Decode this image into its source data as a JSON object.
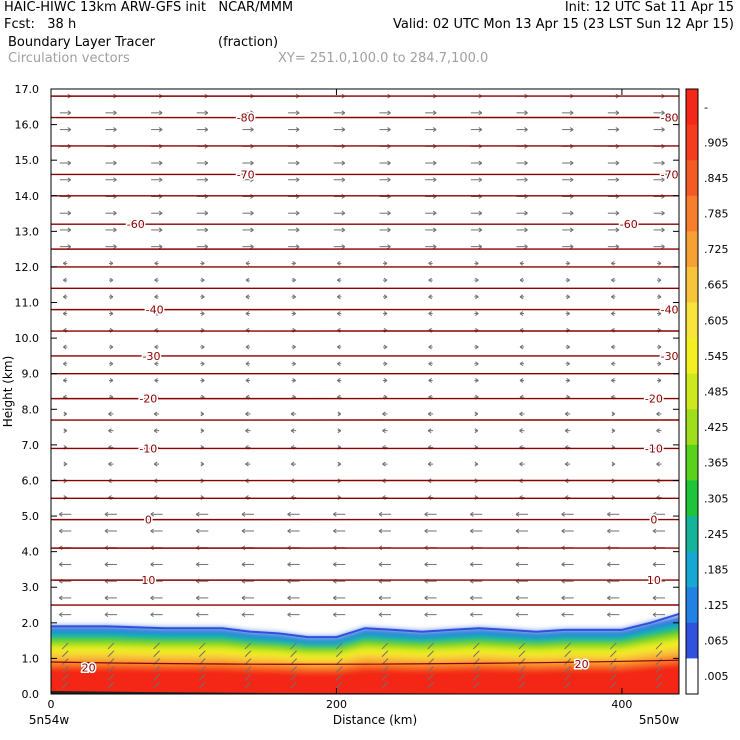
{
  "header": {
    "line1_left": "HAIC-HIWC 13km ARW-GFS init   NCAR/MMM",
    "line1_right": "Init: 12 UTC Sat 11 Apr 15",
    "line2_left": "Fcst:   38 h",
    "line2_right": "Valid: 02 UTC Mon 13 Apr 15 (23 LST Sun 12 Apr 15)",
    "field_name": "Boundary Layer Tracer",
    "field_units": "(fraction)",
    "vector_label": "Circulation vectors",
    "xsec_label": "XY= 251.0,100.0 to 284.7,100.0"
  },
  "colors": {
    "contour": "#8b0000",
    "vector": "#707070",
    "text_gray": "#a0a0a0"
  },
  "chart_data": {
    "type": "heatmap",
    "title": "Boundary Layer Tracer",
    "units": "fraction",
    "xlabel": "Distance (km)",
    "ylabel": "Height (km)",
    "xlim": [
      0,
      440
    ],
    "ylim": [
      0,
      17
    ],
    "x_ticks": [
      0,
      200,
      400
    ],
    "x_tick_labels": [
      "0",
      "200",
      "400"
    ],
    "y_ticks": [
      0,
      1,
      2,
      3,
      4,
      5,
      6,
      7,
      8,
      9,
      10,
      11,
      12,
      13,
      14,
      15,
      16,
      17
    ],
    "y_tick_labels": [
      "0.0",
      "1.0",
      "2.0",
      "3.0",
      "4.0",
      "5.0",
      "6.0",
      "7.0",
      "8.0",
      "9.0",
      "10.0",
      "11.0",
      "12.0",
      "13.0",
      "14.0",
      "15.0",
      "16.0",
      "17.0"
    ],
    "x_end_labels": [
      "5n54w",
      "5n50w"
    ],
    "colorbar": {
      "tick_labels": [
        "-",
        ".905",
        ".845",
        ".785",
        ".725",
        ".665",
        ".605",
        ".545",
        ".485",
        ".425",
        ".365",
        ".305",
        ".245",
        ".185",
        ".125",
        ".065",
        ".005"
      ],
      "colors": [
        "#f42818",
        "#f53c1c",
        "#f55a24",
        "#f67e2c",
        "#f7a034",
        "#f8c43a",
        "#f9e43c",
        "#f3ef20",
        "#cde81c",
        "#9ede1a",
        "#58d21a",
        "#1ec43a",
        "#14b49a",
        "#16a8d2",
        "#2282e4",
        "#3052de",
        "#ffffff"
      ]
    },
    "contour_labels": [
      {
        "text": "-80",
        "x": 0.31,
        "y": 16.2
      },
      {
        "text": "-80",
        "x": 0.985,
        "y": 16.2
      },
      {
        "text": "-70",
        "x": 0.31,
        "y": 14.6
      },
      {
        "text": "-70",
        "x": 0.985,
        "y": 14.6
      },
      {
        "text": "-60",
        "x": 0.135,
        "y": 13.2
      },
      {
        "text": "-60",
        "x": 0.92,
        "y": 13.2
      },
      {
        "text": "-40",
        "x": 0.165,
        "y": 10.8
      },
      {
        "text": "-40",
        "x": 0.985,
        "y": 10.8
      },
      {
        "text": "-30",
        "x": 0.16,
        "y": 9.5
      },
      {
        "text": "-30",
        "x": 0.985,
        "y": 9.5
      },
      {
        "text": "-20",
        "x": 0.155,
        "y": 8.3
      },
      {
        "text": "-20",
        "x": 0.96,
        "y": 8.3
      },
      {
        "text": "-10",
        "x": 0.155,
        "y": 6.9
      },
      {
        "text": "-10",
        "x": 0.96,
        "y": 6.9
      },
      {
        "text": "0",
        "x": 0.155,
        "y": 4.9
      },
      {
        "text": "0",
        "x": 0.96,
        "y": 4.9
      },
      {
        "text": "10",
        "x": 0.155,
        "y": 3.2
      },
      {
        "text": "10",
        "x": 0.96,
        "y": 3.2
      },
      {
        "text": "20",
        "x": 0.06,
        "y": 0.75
      },
      {
        "text": "20",
        "x": 0.845,
        "y": 0.85
      }
    ],
    "isotherm_heights": [
      16.8,
      16.2,
      15.4,
      14.6,
      14.0,
      13.2,
      12.5,
      12.0,
      11.4,
      10.8,
      10.2,
      9.5,
      9.0,
      8.3,
      7.7,
      6.9,
      6.0,
      5.5,
      4.9,
      4.1,
      3.2,
      2.5
    ],
    "bl_top_profile": {
      "x_km": [
        0,
        40,
        80,
        120,
        140,
        160,
        180,
        200,
        220,
        240,
        260,
        280,
        300,
        320,
        340,
        360,
        380,
        400,
        420,
        440
      ],
      "top_km": [
        1.9,
        1.9,
        1.85,
        1.85,
        1.75,
        1.7,
        1.6,
        1.6,
        1.85,
        1.8,
        1.75,
        1.8,
        1.85,
        1.8,
        1.75,
        1.8,
        1.8,
        1.8,
        2.0,
        2.25
      ]
    }
  }
}
